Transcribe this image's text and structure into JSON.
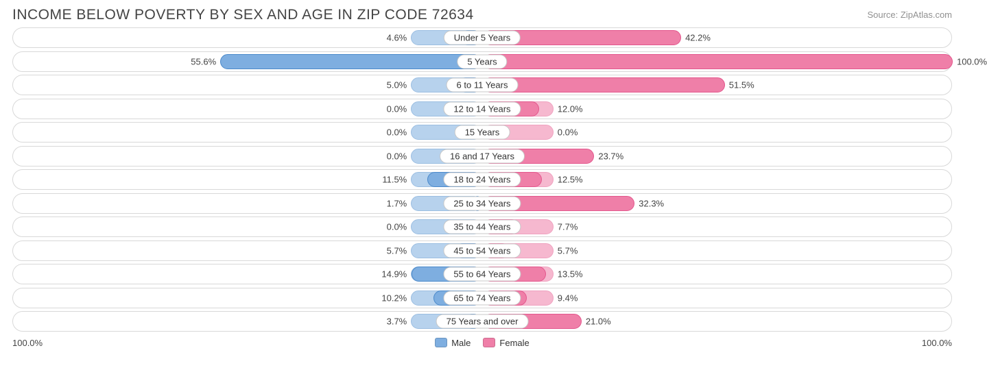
{
  "title": "INCOME BELOW POVERTY BY SEX AND AGE IN ZIP CODE 72634",
  "source": "Source: ZipAtlas.com",
  "axis_left": "100.0%",
  "axis_right": "100.0%",
  "legend": {
    "male": "Male",
    "female": "Female"
  },
  "colors": {
    "male_fill": "#7eaee0",
    "male_border": "#4a89ca",
    "female_fill": "#ef7fa8",
    "female_border": "#e3568c",
    "track_border": "#d8d8d8",
    "pill_border": "#c8c8c8",
    "text": "#444444",
    "source_text": "#909090",
    "background": "#ffffff"
  },
  "chart": {
    "type": "diverging-bar",
    "max": 100.0,
    "prebar_pct": 15,
    "rows": [
      {
        "label": "Under 5 Years",
        "male": 4.6,
        "female": 42.2
      },
      {
        "label": "5 Years",
        "male": 55.6,
        "female": 100.0
      },
      {
        "label": "6 to 11 Years",
        "male": 5.0,
        "female": 51.5
      },
      {
        "label": "12 to 14 Years",
        "male": 0.0,
        "female": 12.0
      },
      {
        "label": "15 Years",
        "male": 0.0,
        "female": 0.0
      },
      {
        "label": "16 and 17 Years",
        "male": 0.0,
        "female": 23.7
      },
      {
        "label": "18 to 24 Years",
        "male": 11.5,
        "female": 12.5
      },
      {
        "label": "25 to 34 Years",
        "male": 1.7,
        "female": 32.3
      },
      {
        "label": "35 to 44 Years",
        "male": 0.0,
        "female": 7.7
      },
      {
        "label": "45 to 54 Years",
        "male": 5.7,
        "female": 5.7
      },
      {
        "label": "55 to 64 Years",
        "male": 14.9,
        "female": 13.5
      },
      {
        "label": "65 to 74 Years",
        "male": 10.2,
        "female": 9.4
      },
      {
        "label": "75 Years and over",
        "male": 3.7,
        "female": 21.0
      }
    ]
  }
}
